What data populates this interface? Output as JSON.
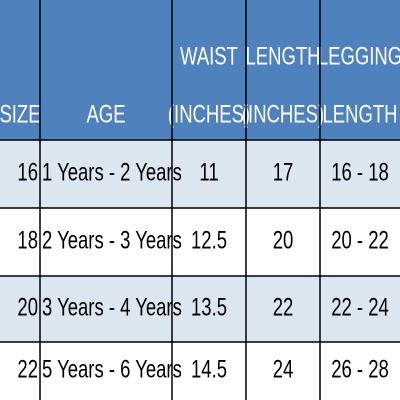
{
  "table": {
    "header": [
      [
        "SIZE"
      ],
      [
        "AGE"
      ],
      [
        "WAIST",
        "(INCHES)"
      ],
      [
        "LENGTH",
        "(INCHES)"
      ],
      [
        "LEGGING",
        "LENGTH"
      ]
    ],
    "rows": [
      [
        16,
        "1 Years - 2 Years",
        11,
        17,
        "16 - 18"
      ],
      [
        18,
        "2 Years - 3 Years",
        12.5,
        20,
        "20 - 22"
      ],
      [
        20,
        "3 Years - 4 Years",
        13.5,
        22,
        "22 - 24"
      ],
      [
        22,
        "5 Years - 6 Years",
        14.5,
        24,
        "26 - 28"
      ]
    ]
  }
}
